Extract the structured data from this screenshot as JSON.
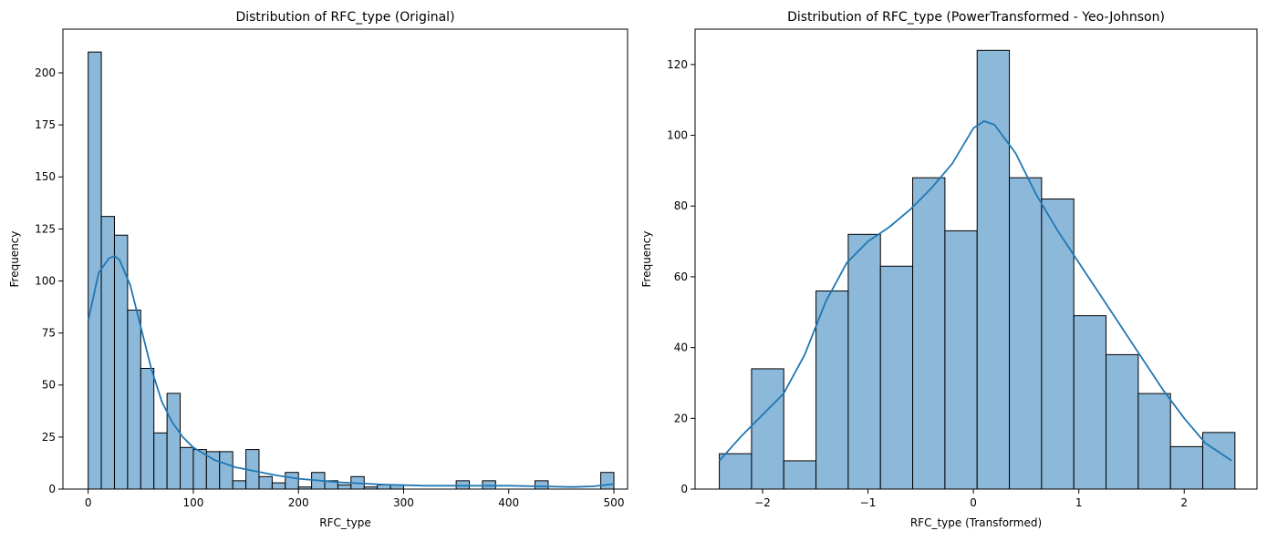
{
  "chart_data": [
    {
      "type": "bar",
      "subtype": "histogram-with-kde",
      "title": "Distribution of RFC_type (Original)",
      "xlabel": "RFC_type",
      "ylabel": "Frequency",
      "xlim": [
        -24,
        513
      ],
      "ylim": [
        0,
        221
      ],
      "xticks": [
        0,
        100,
        200,
        300,
        400,
        500
      ],
      "yticks": [
        0,
        25,
        50,
        75,
        100,
        125,
        150,
        175,
        200
      ],
      "bin_start": 0,
      "bin_width": 12.5,
      "values": [
        210,
        131,
        122,
        86,
        58,
        27,
        46,
        20,
        19,
        18,
        18,
        4,
        19,
        6,
        3,
        8,
        1,
        8,
        4,
        2,
        6,
        1,
        2,
        2,
        0,
        0,
        0,
        0,
        4,
        0,
        4,
        0,
        0,
        0,
        4,
        0,
        0,
        0,
        0,
        8
      ],
      "kde": {
        "x": [
          0,
          10,
          20,
          25,
          30,
          40,
          50,
          60,
          70,
          80,
          90,
          100,
          120,
          140,
          160,
          180,
          200,
          240,
          280,
          320,
          360,
          400,
          430,
          460,
          480,
          500
        ],
        "y": [
          81,
          104,
          111,
          112,
          110,
          98,
          78,
          58,
          42,
          32,
          25,
          20,
          14,
          10.5,
          8.5,
          6.5,
          5,
          3.2,
          2.2,
          1.6,
          1.6,
          1.6,
          1.3,
          1.0,
          1.3,
          2.4
        ]
      },
      "bar_color": "#8cb8d9",
      "line_color": "#1f77b4"
    },
    {
      "type": "bar",
      "subtype": "histogram-with-kde",
      "title": "Distribution of RFC_type (PowerTransformed - Yeo-Johnson)",
      "xlabel": "RFC_type (Transformed)",
      "ylabel": "Frequency",
      "xlim": [
        -2.64,
        2.69
      ],
      "ylim": [
        0,
        130
      ],
      "xticks": [
        -2,
        -1,
        0,
        1,
        2
      ],
      "xtick_labels": [
        "−2",
        "−1",
        "0",
        "1",
        "2"
      ],
      "yticks": [
        0,
        20,
        40,
        60,
        80,
        100,
        120
      ],
      "bin_start": -2.41,
      "bin_width": 0.3057,
      "values": [
        10,
        34,
        8,
        56,
        72,
        63,
        88,
        73,
        124,
        88,
        82,
        49,
        38,
        27,
        12,
        16
      ],
      "kde": {
        "x": [
          -2.41,
          -2.2,
          -2.0,
          -1.8,
          -1.6,
          -1.4,
          -1.2,
          -1.0,
          -0.8,
          -0.6,
          -0.4,
          -0.2,
          0.0,
          0.1,
          0.2,
          0.4,
          0.6,
          0.8,
          1.0,
          1.2,
          1.4,
          1.6,
          1.8,
          2.0,
          2.2,
          2.45
        ],
        "y": [
          8,
          15,
          21,
          27,
          38,
          53,
          64,
          70,
          74,
          79,
          85,
          92,
          102,
          104,
          103,
          95,
          83,
          73,
          64,
          55,
          46,
          37,
          28,
          20,
          13,
          8
        ]
      },
      "bar_color": "#8cb8d9",
      "line_color": "#1f77b4"
    }
  ]
}
